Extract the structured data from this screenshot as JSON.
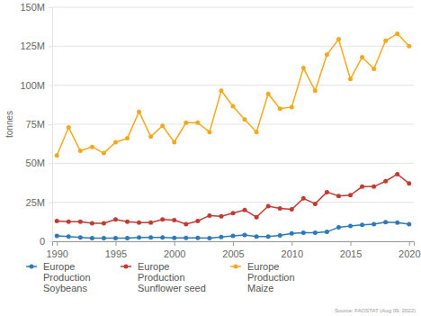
{
  "chart_data": {
    "type": "line",
    "y_label": "tonnes",
    "source": "Source: FAOSTAT (Aug 09, 2022)",
    "x": [
      1990,
      1991,
      1992,
      1993,
      1994,
      1995,
      1996,
      1997,
      1998,
      1999,
      2000,
      2001,
      2002,
      2003,
      2004,
      2005,
      2006,
      2007,
      2008,
      2009,
      2010,
      2011,
      2012,
      2013,
      2014,
      2015,
      2016,
      2017,
      2018,
      2019,
      2020
    ],
    "xlim": [
      1989.6,
      2020.4
    ],
    "xticks": [
      1990,
      1995,
      2000,
      2005,
      2010,
      2015,
      2020
    ],
    "ylim": [
      0,
      150000000
    ],
    "yticks": [
      {
        "value": 0,
        "label": "0"
      },
      {
        "value": 25000000,
        "label": "25M"
      },
      {
        "value": 50000000,
        "label": "50M"
      },
      {
        "value": 75000000,
        "label": "75M"
      },
      {
        "value": 100000000,
        "label": "100M"
      },
      {
        "value": 125000000,
        "label": "125M"
      },
      {
        "value": 150000000,
        "label": "150M"
      }
    ],
    "grid": true,
    "legend": "bottom",
    "marker": "circle",
    "line_style": "solid",
    "series": [
      {
        "name": "Europe Production Soybeans",
        "color": "#2e7ab8",
        "values": [
          3500000,
          3000000,
          2500000,
          2000000,
          2000000,
          2000000,
          2000000,
          2500000,
          2500000,
          2500000,
          2200000,
          2200000,
          2200000,
          2000000,
          2800000,
          3500000,
          4000000,
          3000000,
          3000000,
          3800000,
          5000000,
          5500000,
          5500000,
          6000000,
          9000000,
          9800000,
          10500000,
          11000000,
          12200000,
          12000000,
          11000000
        ]
      },
      {
        "name": "Europe Production Sunflower seed",
        "color": "#c23b32",
        "values": [
          13000000,
          12500000,
          12500000,
          11500000,
          11500000,
          14000000,
          12500000,
          12000000,
          12000000,
          14000000,
          13500000,
          11000000,
          13000000,
          16500000,
          16000000,
          18000000,
          20000000,
          15500000,
          22500000,
          21000000,
          20500000,
          27500000,
          24000000,
          31500000,
          29000000,
          29500000,
          35000000,
          35000000,
          38500000,
          43000000,
          37000000
        ]
      },
      {
        "name": "Europe Production Maize",
        "color": "#f5a81c",
        "values": [
          55000000,
          73000000,
          58000000,
          60500000,
          56500000,
          63500000,
          66000000,
          83000000,
          67000000,
          74000000,
          63500000,
          76000000,
          76000000,
          70000000,
          96500000,
          86500000,
          78000000,
          70000000,
          94500000,
          85000000,
          86000000,
          111000000,
          96500000,
          119500000,
          129500000,
          104000000,
          118000000,
          110500000,
          128500000,
          133000000,
          125000000
        ]
      }
    ]
  }
}
